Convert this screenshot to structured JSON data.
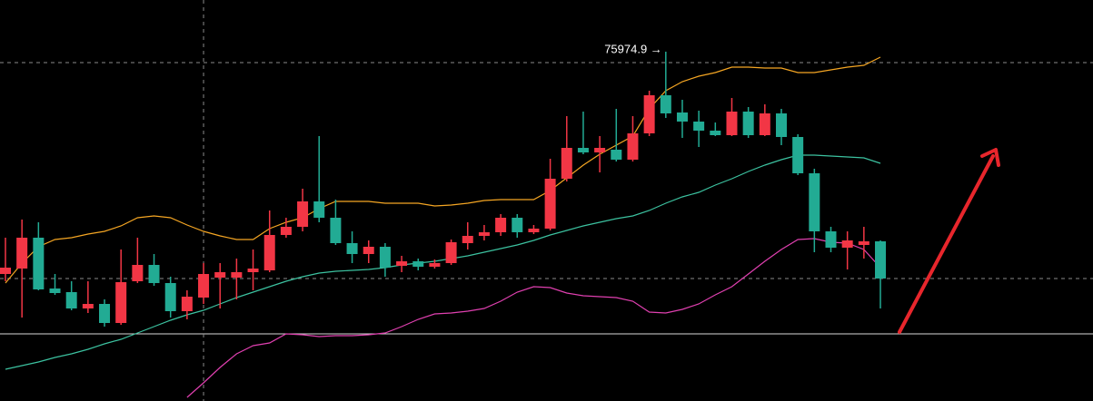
{
  "chart_data": {
    "type": "candlestick",
    "ylim": [
      69044,
      77000
    ],
    "up_color": "#f23645",
    "down_color": "#22ab94",
    "ohlc": [
      [
        71564,
        72284,
        71420,
        71690
      ],
      [
        71672,
        72644,
        70700,
        72284
      ],
      [
        72284,
        72590,
        71240,
        71258
      ],
      [
        71276,
        71564,
        71150,
        71186
      ],
      [
        71204,
        71420,
        70844,
        70880
      ],
      [
        70880,
        71420,
        70790,
        70970
      ],
      [
        70970,
        71060,
        70520,
        70592
      ],
      [
        70592,
        72050,
        70556,
        71402
      ],
      [
        71420,
        72284,
        71384,
        71744
      ],
      [
        71744,
        71960,
        71330,
        71384
      ],
      [
        71384,
        71510,
        70700,
        70826
      ],
      [
        70826,
        71240,
        70664,
        71114
      ],
      [
        71096,
        71780,
        70970,
        71564
      ],
      [
        71492,
        71780,
        70880,
        71600
      ],
      [
        71492,
        71870,
        71060,
        71600
      ],
      [
        71600,
        72050,
        71240,
        71672
      ],
      [
        71636,
        72824,
        71600,
        72338
      ],
      [
        72338,
        72680,
        72284,
        72500
      ],
      [
        72500,
        73256,
        72410,
        73004
      ],
      [
        73004,
        74300,
        72590,
        72680
      ],
      [
        72680,
        73040,
        72140,
        72176
      ],
      [
        72176,
        72410,
        71780,
        71960
      ],
      [
        71960,
        72230,
        71780,
        72104
      ],
      [
        72104,
        72176,
        71510,
        71690
      ],
      [
        71726,
        71924,
        71600,
        71816
      ],
      [
        71816,
        71870,
        71636,
        71708
      ],
      [
        71708,
        71852,
        71672,
        71780
      ],
      [
        71780,
        72248,
        71744,
        72194
      ],
      [
        72176,
        72590,
        72050,
        72320
      ],
      [
        72320,
        72536,
        72230,
        72392
      ],
      [
        72392,
        72752,
        72320,
        72680
      ],
      [
        72680,
        72752,
        72284,
        72392
      ],
      [
        72392,
        72536,
        72356,
        72464
      ],
      [
        72464,
        73850,
        72428,
        73454
      ],
      [
        73454,
        74696,
        73400,
        74066
      ],
      [
        74066,
        74786,
        73940,
        73976
      ],
      [
        73976,
        74300,
        73580,
        74066
      ],
      [
        74030,
        74840,
        73796,
        73832
      ],
      [
        73832,
        74696,
        73796,
        74354
      ],
      [
        74354,
        75200,
        74300,
        75110
      ],
      [
        75110,
        75974.9,
        74660,
        74750
      ],
      [
        74768,
        75020,
        74264,
        74588
      ],
      [
        74588,
        74804,
        74084,
        74408
      ],
      [
        74408,
        74570,
        74300,
        74318
      ],
      [
        74318,
        75056,
        74300,
        74786
      ],
      [
        74786,
        74876,
        74264,
        74318
      ],
      [
        74318,
        74930,
        74300,
        74750
      ],
      [
        74750,
        74840,
        74120,
        74282
      ],
      [
        74282,
        74336,
        73526,
        73562
      ],
      [
        73562,
        73652,
        71996,
        72410
      ],
      [
        72410,
        72500,
        71996,
        72086
      ],
      [
        72086,
        72410,
        71654,
        72230
      ],
      [
        72140,
        72500,
        71870,
        72212
      ],
      [
        72212,
        72230,
        70880,
        71474
      ]
    ],
    "lines": [
      {
        "color": "#f5a623",
        "values": [
          71384,
          71780,
          72104,
          72248,
          72284,
          72356,
          72410,
          72518,
          72680,
          72716,
          72680,
          72536,
          72410,
          72320,
          72248,
          72248,
          72464,
          72590,
          72680,
          72860,
          73004,
          73004,
          73004,
          72968,
          72968,
          72968,
          72914,
          72932,
          72968,
          73022,
          73040,
          73040,
          73040,
          73220,
          73472,
          73724,
          73940,
          74120,
          74300,
          74840,
          75200,
          75380,
          75488,
          75560,
          75668,
          75668,
          75650,
          75650,
          75560,
          75560,
          75614,
          75668,
          75704,
          75866
        ]
      },
      {
        "color": "#3cc2a0",
        "values": [
          69674,
          69746,
          69818,
          69908,
          69980,
          70070,
          70178,
          70268,
          70394,
          70520,
          70646,
          70754,
          70844,
          70970,
          71096,
          71204,
          71312,
          71420,
          71510,
          71582,
          71618,
          71636,
          71654,
          71690,
          71744,
          71780,
          71816,
          71870,
          71924,
          71996,
          72068,
          72140,
          72230,
          72338,
          72428,
          72518,
          72590,
          72662,
          72716,
          72824,
          72968,
          73094,
          73184,
          73328,
          73454,
          73598,
          73724,
          73832,
          73922,
          73922,
          73904,
          73886,
          73868,
          73760
        ]
      },
      {
        "color": "#e040b0",
        "values": [
          null,
          null,
          null,
          null,
          null,
          null,
          null,
          null,
          null,
          null,
          null,
          69116,
          69404,
          69710,
          69980,
          70142,
          70196,
          70376,
          70358,
          70322,
          70340,
          70340,
          70358,
          70394,
          70520,
          70664,
          70772,
          70790,
          70826,
          70880,
          71024,
          71204,
          71312,
          71294,
          71186,
          71132,
          71114,
          71096,
          71024,
          70808,
          70790,
          70862,
          70970,
          71150,
          71312,
          71564,
          71816,
          72050,
          72248,
          72266,
          72194,
          72176,
          72050,
          71690
        ]
      }
    ],
    "price_lines": [
      {
        "value": 75758,
        "style": "dashed"
      },
      {
        "value": 71474,
        "style": "dashed"
      },
      {
        "value": 70376,
        "style": "solid"
      }
    ],
    "crosshair_index": 12,
    "annotation": {
      "text": "75974.9 →",
      "index": 40,
      "value": 75974.9
    }
  }
}
